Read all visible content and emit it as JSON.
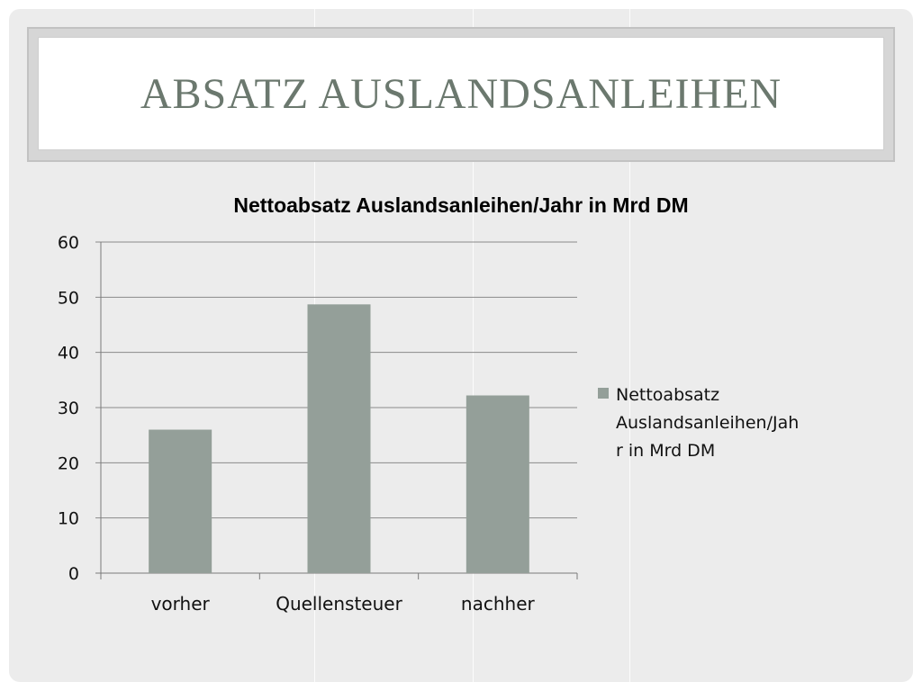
{
  "slide": {
    "title": "Absatz Auslandsanleihen"
  },
  "colors": {
    "background": "#ececec",
    "title_text": "#6b786e",
    "bar": "#949f99",
    "grid": "#8a8a8a"
  },
  "chart_data": {
    "type": "bar",
    "title": "Nettoabsatz Auslandsanleihen/Jahr in Mrd DM",
    "categories": [
      "vorher",
      "Quellensteuer",
      "nachher"
    ],
    "series": [
      {
        "name": "Nettoabsatz Auslandsanleihen/Jahr in Mrd DM",
        "values": [
          26,
          48.7,
          32.2
        ]
      }
    ],
    "ylim": [
      0,
      60
    ],
    "yticks": [
      0,
      10,
      20,
      30,
      40,
      50,
      60
    ],
    "grid": true,
    "legend_position": "right",
    "legend_lines": [
      "Nettoabsatz",
      "Auslandsanleihen/Jah",
      "r in Mrd DM"
    ]
  }
}
